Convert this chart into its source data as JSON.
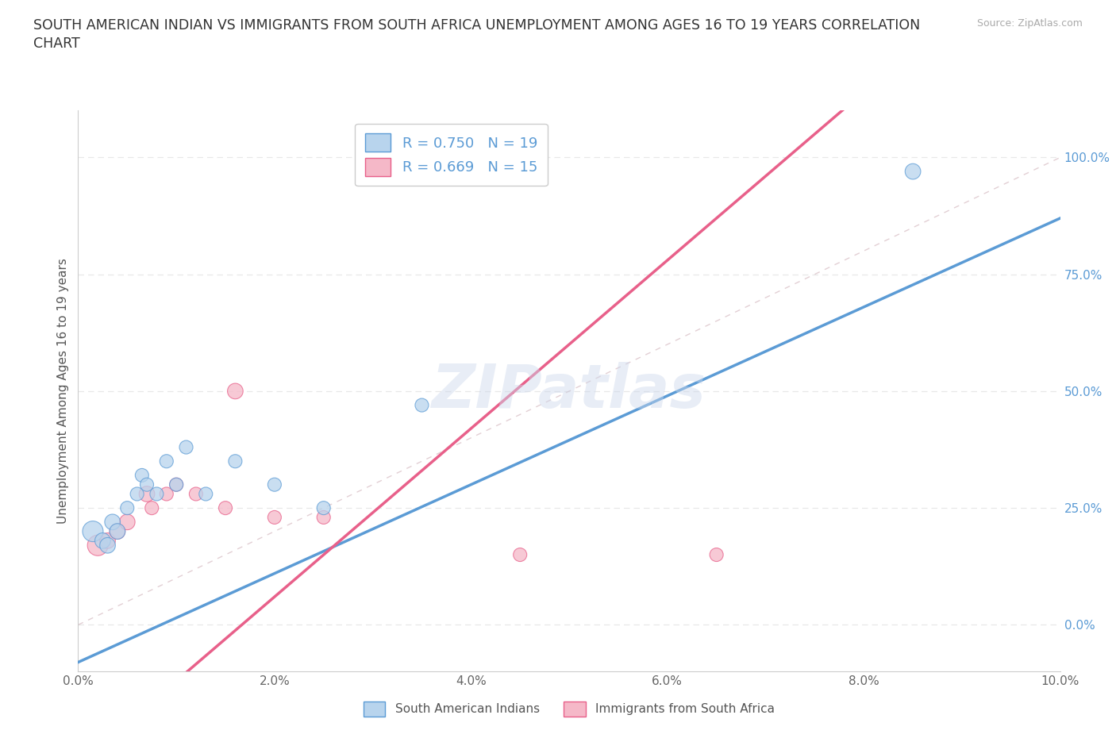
{
  "title_line1": "SOUTH AMERICAN INDIAN VS IMMIGRANTS FROM SOUTH AFRICA UNEMPLOYMENT AMONG AGES 16 TO 19 YEARS CORRELATION",
  "title_line2": "CHART",
  "source": "Source: ZipAtlas.com",
  "ylabel": "Unemployment Among Ages 16 to 19 years",
  "watermark": "ZIPatlas",
  "legend1_label": "R = 0.750   N = 19",
  "legend2_label": "R = 0.669   N = 15",
  "legend_bottom1": "South American Indians",
  "legend_bottom2": "Immigrants from South Africa",
  "blue_color": "#b8d4ed",
  "pink_color": "#f5b8c8",
  "blue_line_color": "#5b9bd5",
  "pink_line_color": "#e8608a",
  "blue_scatter": [
    [
      0.15,
      20
    ],
    [
      0.25,
      18
    ],
    [
      0.3,
      17
    ],
    [
      0.35,
      22
    ],
    [
      0.4,
      20
    ],
    [
      0.5,
      25
    ],
    [
      0.6,
      28
    ],
    [
      0.65,
      32
    ],
    [
      0.7,
      30
    ],
    [
      0.8,
      28
    ],
    [
      0.9,
      35
    ],
    [
      1.0,
      30
    ],
    [
      1.1,
      38
    ],
    [
      1.3,
      28
    ],
    [
      1.6,
      35
    ],
    [
      2.0,
      30
    ],
    [
      2.5,
      25
    ],
    [
      3.5,
      47
    ],
    [
      8.5,
      97
    ]
  ],
  "pink_scatter": [
    [
      0.2,
      17
    ],
    [
      0.3,
      18
    ],
    [
      0.4,
      20
    ],
    [
      0.5,
      22
    ],
    [
      0.7,
      28
    ],
    [
      0.75,
      25
    ],
    [
      0.9,
      28
    ],
    [
      1.0,
      30
    ],
    [
      1.2,
      28
    ],
    [
      1.5,
      25
    ],
    [
      1.6,
      50
    ],
    [
      2.0,
      23
    ],
    [
      2.5,
      23
    ],
    [
      4.5,
      15
    ],
    [
      6.5,
      15
    ]
  ],
  "blue_sizes": [
    350,
    200,
    200,
    200,
    200,
    150,
    150,
    150,
    150,
    150,
    150,
    150,
    150,
    150,
    150,
    150,
    150,
    150,
    200
  ],
  "pink_sizes": [
    350,
    200,
    200,
    200,
    200,
    150,
    150,
    150,
    150,
    150,
    200,
    150,
    150,
    150,
    150
  ],
  "xlim": [
    0.0,
    10.0
  ],
  "ylim": [
    -10,
    110
  ],
  "yticks": [
    0,
    25,
    50,
    75,
    100
  ],
  "ytick_labels": [
    "0.0%",
    "25.0%",
    "50.0%",
    "75.0%",
    "100.0%"
  ],
  "xticks": [
    0,
    2,
    4,
    6,
    8,
    10
  ],
  "xtick_labels": [
    "0.0%",
    "2.0%",
    "4.0%",
    "6.0%",
    "8.0%",
    "10.0%"
  ],
  "grid_color": "#e8e8e8",
  "grid_style": "--",
  "bg_color": "#ffffff",
  "ref_line_color": "#d0b0b8",
  "blue_intercept": -8,
  "blue_slope": 9.5,
  "pink_intercept": -30,
  "pink_slope": 18.0
}
